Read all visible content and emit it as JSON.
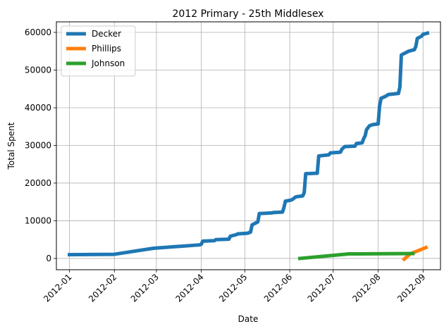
{
  "chart_data": {
    "type": "line",
    "title": "2012 Primary - 25th Middlesex",
    "xlabel": "Date",
    "ylabel": "Total Spent",
    "x_axis_type": "date",
    "xlim": [
      "2011-12-23",
      "2012-09-13"
    ],
    "ylim": [
      -3000,
      62800
    ],
    "x_ticks": [
      "2012-01-01",
      "2012-02-01",
      "2012-03-01",
      "2012-04-01",
      "2012-05-01",
      "2012-06-01",
      "2012-07-01",
      "2012-08-01",
      "2012-09-01"
    ],
    "x_tick_labels": [
      "2012-01",
      "2012-02",
      "2012-03",
      "2012-04",
      "2012-05",
      "2012-06",
      "2012-07",
      "2012-08",
      "2012-09"
    ],
    "y_ticks": [
      0,
      10000,
      20000,
      30000,
      40000,
      50000,
      60000
    ],
    "y_tick_labels": [
      "0",
      "10000",
      "20000",
      "30000",
      "40000",
      "50000",
      "60000"
    ],
    "grid": true,
    "legend_position": "top-left",
    "series": [
      {
        "name": "Decker",
        "color": "#1f77b4",
        "points": [
          [
            "2012-01-01",
            1000
          ],
          [
            "2012-02-01",
            1100
          ],
          [
            "2012-02-28",
            2700
          ],
          [
            "2012-03-31",
            3600
          ],
          [
            "2012-04-01",
            3800
          ],
          [
            "2012-04-02",
            4600
          ],
          [
            "2012-04-10",
            4700
          ],
          [
            "2012-04-11",
            5000
          ],
          [
            "2012-04-20",
            5100
          ],
          [
            "2012-04-21",
            5900
          ],
          [
            "2012-04-25",
            6300
          ],
          [
            "2012-04-26",
            6500
          ],
          [
            "2012-05-03",
            6700
          ],
          [
            "2012-05-05",
            7000
          ],
          [
            "2012-05-06",
            8900
          ],
          [
            "2012-05-09",
            9500
          ],
          [
            "2012-05-10",
            9700
          ],
          [
            "2012-05-11",
            11900
          ],
          [
            "2012-05-20",
            12100
          ],
          [
            "2012-05-21",
            12200
          ],
          [
            "2012-05-27",
            12300
          ],
          [
            "2012-05-28",
            13500
          ],
          [
            "2012-05-29",
            15200
          ],
          [
            "2012-06-02",
            15500
          ],
          [
            "2012-06-03",
            15700
          ],
          [
            "2012-06-05",
            16300
          ],
          [
            "2012-06-06",
            16400
          ],
          [
            "2012-06-10",
            16600
          ],
          [
            "2012-06-11",
            17500
          ],
          [
            "2012-06-12",
            22500
          ],
          [
            "2012-06-20",
            22600
          ],
          [
            "2012-06-21",
            27200
          ],
          [
            "2012-06-28",
            27500
          ],
          [
            "2012-06-29",
            28000
          ],
          [
            "2012-07-06",
            28200
          ],
          [
            "2012-07-07",
            29000
          ],
          [
            "2012-07-09",
            29700
          ],
          [
            "2012-07-16",
            29800
          ],
          [
            "2012-07-17",
            30500
          ],
          [
            "2012-07-21",
            30700
          ],
          [
            "2012-07-22",
            31800
          ],
          [
            "2012-07-23",
            32500
          ],
          [
            "2012-07-24",
            34200
          ],
          [
            "2012-07-26",
            35200
          ],
          [
            "2012-07-28",
            35500
          ],
          [
            "2012-08-01",
            35700
          ],
          [
            "2012-08-02",
            40500
          ],
          [
            "2012-08-03",
            42500
          ],
          [
            "2012-08-06",
            43000
          ],
          [
            "2012-08-08",
            43500
          ],
          [
            "2012-08-15",
            43800
          ],
          [
            "2012-08-16",
            45500
          ],
          [
            "2012-08-17",
            54000
          ],
          [
            "2012-08-20",
            54600
          ],
          [
            "2012-08-22",
            55000
          ],
          [
            "2012-08-26",
            55400
          ],
          [
            "2012-08-27",
            56300
          ],
          [
            "2012-08-28",
            58400
          ],
          [
            "2012-08-31",
            59000
          ],
          [
            "2012-09-01",
            59500
          ],
          [
            "2012-09-04",
            59800
          ]
        ]
      },
      {
        "name": "Phillips",
        "color": "#ff7f0e",
        "points": [
          [
            "2012-08-19",
            -200
          ],
          [
            "2012-08-23",
            1200
          ],
          [
            "2012-09-03",
            2900
          ]
        ]
      },
      {
        "name": "Johnson",
        "color": "#2ca02c",
        "points": [
          [
            "2012-06-08",
            0
          ],
          [
            "2012-07-12",
            1200
          ],
          [
            "2012-08-25",
            1300
          ]
        ]
      }
    ]
  }
}
